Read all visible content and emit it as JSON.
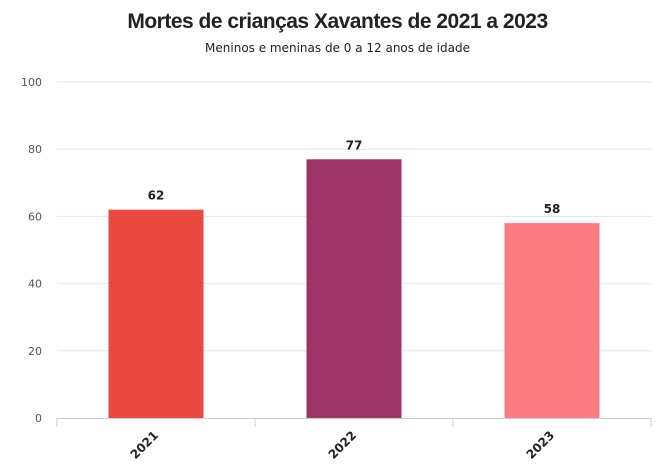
{
  "chart_data": {
    "type": "bar",
    "title": "Mortes de crianças Xavantes de 2021 a 2023",
    "subtitle": "Meninos e meninas de 0 a 12 anos de idade",
    "categories": [
      "2021",
      "2022",
      "2023"
    ],
    "values": [
      62,
      77,
      58
    ],
    "value_labels": [
      "62",
      "77",
      "58"
    ],
    "colors": [
      "#e84a3f",
      "#9c3565",
      "#fa7b82"
    ],
    "ylim": [
      0,
      100
    ],
    "yticks": [
      0,
      20,
      40,
      60,
      80,
      100
    ],
    "ytick_labels": [
      "0",
      "20",
      "40",
      "60",
      "80",
      "100"
    ],
    "xlabel": "",
    "ylabel": "",
    "grid": true,
    "legend": "none"
  }
}
